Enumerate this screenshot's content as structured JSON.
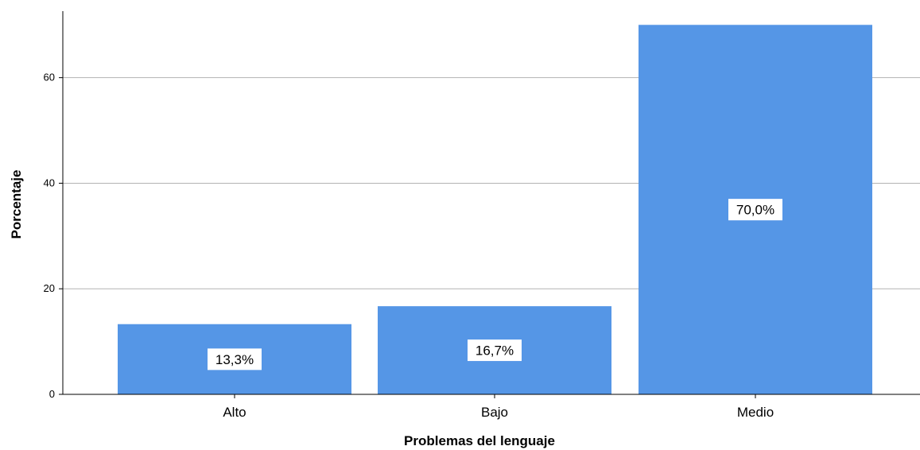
{
  "chart_data": {
    "type": "bar",
    "categories": [
      "Alto",
      "Bajo",
      "Medio"
    ],
    "values": [
      13.3,
      16.7,
      70.0
    ],
    "data_labels": [
      "13,3%",
      "16,7%",
      "70,0%"
    ],
    "xlabel": "Problemas del lenguaje",
    "ylabel": "Porcentaje",
    "ylim": [
      0,
      72
    ],
    "yticks": [
      0,
      20,
      40,
      60
    ],
    "grid": true,
    "legend": "none",
    "bar_color": "#5596e6",
    "grid_color": "#b3b3b3",
    "label_box_color": "#ffffff"
  }
}
